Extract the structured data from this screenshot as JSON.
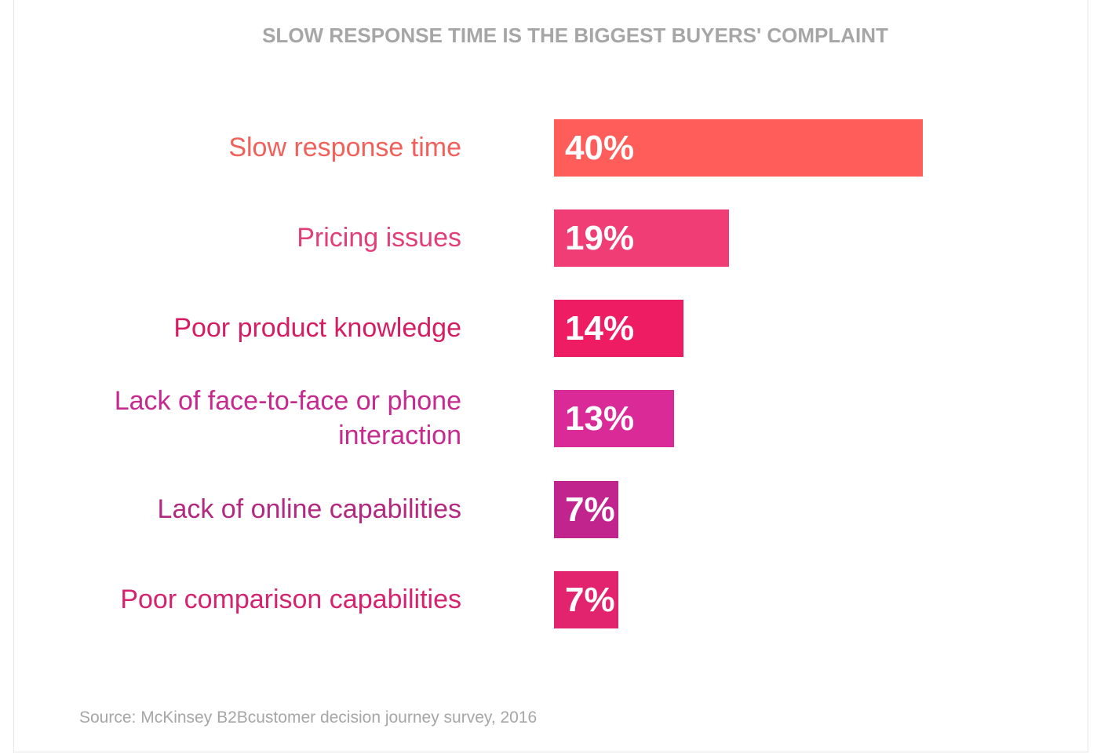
{
  "chart_data": {
    "type": "bar",
    "orientation": "horizontal",
    "title": "SLOW RESPONSE TIME IS THE BIGGEST BUYERS' COMPLAINT",
    "categories": [
      "Slow response time",
      "Pricing issues",
      "Poor product knowledge",
      "Lack of face-to-face or phone interaction",
      "Lack of online capabilities",
      "Poor comparison capabilities"
    ],
    "values": [
      40,
      19,
      14,
      13,
      7,
      7
    ],
    "value_labels": [
      "40%",
      "19%",
      "14%",
      "13%",
      "7%",
      "7%"
    ],
    "colors": [
      "#ff5d59",
      "#f03d76",
      "#ed1c63",
      "#d92a97",
      "#c1248c",
      "#e1246d"
    ],
    "label_colors": [
      "#f2605a",
      "#e23e78",
      "#d51d63",
      "#c72a8e",
      "#b3297f",
      "#d52370"
    ],
    "xlim": [
      0,
      40
    ],
    "source": "Source: McKinsey B2Bcustomer decision journey survey, 2016"
  }
}
